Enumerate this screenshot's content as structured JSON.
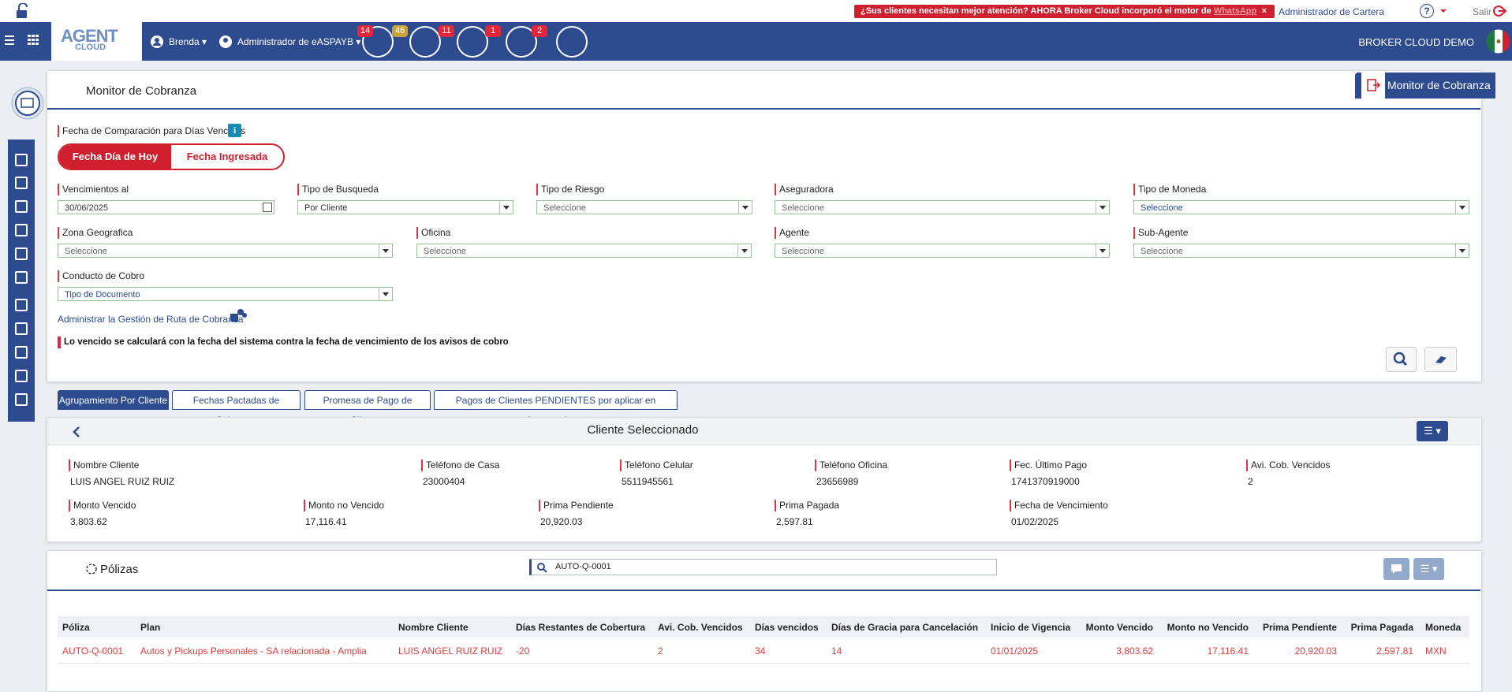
{
  "top_bar": {
    "banner_text": "¿Sus clientes necesitan mejor atención? AHORA Broker Cloud incorporó el motor de",
    "banner_link": "WhatsApp",
    "banner_close": "×",
    "role": "Administrador de Cartera",
    "help": "?",
    "logout": "Salir"
  },
  "nav": {
    "logo": "AGENT",
    "logo_sub": "CLOUD",
    "user": "Brenda",
    "profile": "Administrador de eASPAYB",
    "badges": [
      14,
      46,
      11,
      1,
      2
    ],
    "company": "BROKER CLOUD DEMO"
  },
  "page": {
    "title": "Monitor de Cobranza",
    "tab": "Monitor de Cobranza"
  },
  "filters": {
    "comparison_label": "Fecha de Comparación para Días Vencidos",
    "toggle": [
      "Fecha Día de Hoy",
      "Fecha Ingresada"
    ],
    "fields": [
      {
        "label": "Vencimientos al",
        "value": "30/06/2025"
      },
      {
        "label": "Tipo de Busqueda",
        "value": "Por Cliente"
      },
      {
        "label": "Tipo de Riesgo",
        "value": "Seleccione"
      },
      {
        "label": "Aseguradora",
        "value": "Seleccione"
      },
      {
        "label": "Tipo de Moneda",
        "value": "Seleccione"
      },
      {
        "label": "Zona Geografica",
        "value": "Seleccione"
      },
      {
        "label": "Oficina",
        "value": "Seleccione"
      },
      {
        "label": "Agente",
        "value": "Seleccione"
      },
      {
        "label": "Sub-Agente",
        "value": "Seleccione"
      },
      {
        "label": "Conducto de Cobro",
        "value": "Tipo de Documento"
      }
    ],
    "route_link": "Administrar la Gestión de Ruta de Cobranza",
    "note": "Lo vencido se calculará con la fecha del sistema contra la fecha de vencimiento de los avisos de cobro"
  },
  "tabs": [
    "Agrupamiento Por Cliente",
    "Fechas Pactadas de Cobranza",
    "Promesa de Pago de Clientes",
    "Pagos de Clientes PENDIENTES por aplicar en Aseguradoras"
  ],
  "client": {
    "title": "Cliente Seleccionado",
    "fields": [
      {
        "label": "Nombre Cliente",
        "value": "LUIS ANGEL RUIZ RUIZ"
      },
      {
        "label": "Teléfono de Casa",
        "value": "23000404"
      },
      {
        "label": "Teléfono Celular",
        "value": "5511945561"
      },
      {
        "label": "Teléfono Oficina",
        "value": "23656989"
      },
      {
        "label": "Fec. Último Pago",
        "value": "1741370919000"
      },
      {
        "label": "Avi. Cob. Vencidos",
        "value": "2"
      },
      {
        "label": "Monto Vencido",
        "value": "3,803.62"
      },
      {
        "label": "Monto no Vencido",
        "value": "17,116.41"
      },
      {
        "label": "Prima Pendiente",
        "value": "20,920.03"
      },
      {
        "label": "Prima Pagada",
        "value": "2,597.81"
      },
      {
        "label": "Fecha de Vencimiento",
        "value": "01/02/2025"
      }
    ]
  },
  "policies": {
    "title": "Pólizas",
    "search": "AUTO-Q-0001",
    "columns": [
      "Póliza",
      "Plan",
      "Nombre Cliente",
      "Días Restantes de Cobertura",
      "Avi. Cob. Vencidos",
      "Días vencidos",
      "Días de Gracia para Cancelación",
      "Inicio de Vigencia",
      "Monto Vencido",
      "Monto no Vencido",
      "Prima Pendiente",
      "Prima Pagada",
      "Moneda"
    ],
    "rows": [
      [
        "AUTO-Q-0001",
        "Autos y Pickups Personales - SA relacionada - Amplia",
        "LUIS ANGEL RUIZ RUIZ",
        "-20",
        "2",
        "34",
        "14",
        "01/01/2025",
        "3,803.62",
        "17,116.41",
        "20,920.03",
        "2,597.81",
        "MXN"
      ]
    ]
  }
}
